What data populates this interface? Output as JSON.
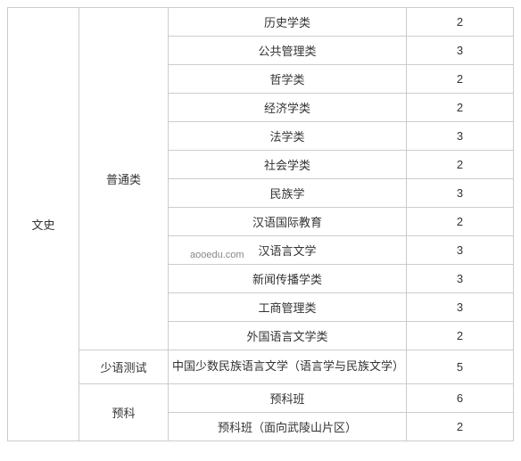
{
  "table": {
    "col1_label": "文史",
    "watermark": "aooedu.com",
    "categories": [
      {
        "name": "普通类",
        "rows": [
          {
            "major": "历史学类",
            "count": "2"
          },
          {
            "major": "公共管理类",
            "count": "3"
          },
          {
            "major": "哲学类",
            "count": "2"
          },
          {
            "major": "经济学类",
            "count": "2"
          },
          {
            "major": "法学类",
            "count": "3"
          },
          {
            "major": "社会学类",
            "count": "2"
          },
          {
            "major": "民族学",
            "count": "3"
          },
          {
            "major": "汉语国际教育",
            "count": "2"
          },
          {
            "major": "汉语言文学",
            "count": "3"
          },
          {
            "major": "新闻传播学类",
            "count": "3"
          },
          {
            "major": "工商管理类",
            "count": "3"
          },
          {
            "major": "外国语言文学类",
            "count": "2"
          }
        ]
      },
      {
        "name": "少语测试",
        "rows": [
          {
            "major": "中国少数民族语言文学（语言学与民族文学）",
            "count": "5"
          }
        ]
      },
      {
        "name": "预科",
        "rows": [
          {
            "major": "预科班",
            "count": "6"
          },
          {
            "major": "预科班（面向武陵山片区）",
            "count": "2"
          }
        ]
      }
    ]
  },
  "style": {
    "border_color": "#cccccc",
    "text_color": "#333333",
    "font_size": 13,
    "background": "#ffffff"
  }
}
